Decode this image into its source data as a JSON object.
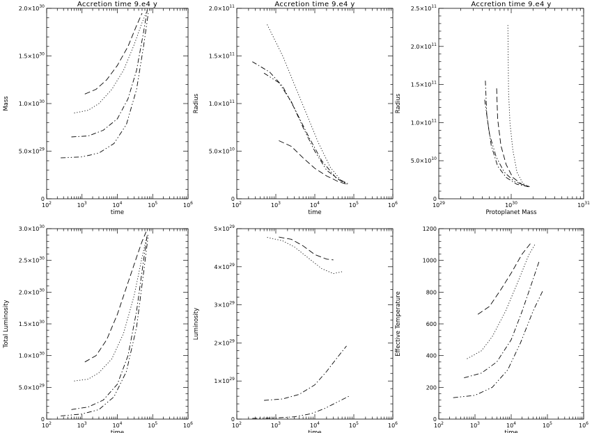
{
  "chart_data": [
    {
      "type": "line",
      "title": "Accretion time 9.e4 y",
      "xlabel": "time",
      "ylabel": "Mass",
      "xscale": "log",
      "xlim": [
        100,
        1000000
      ],
      "ylim": [
        0,
        2e+30
      ],
      "xticks": [
        {
          "v": 100,
          "b": "10",
          "e": "2"
        },
        {
          "v": 1000,
          "b": "10",
          "e": "3"
        },
        {
          "v": 10000,
          "b": "10",
          "e": "4"
        },
        {
          "v": 100000,
          "b": "10",
          "e": "5"
        },
        {
          "v": 1000000,
          "b": "10",
          "e": "6"
        }
      ],
      "yticks": [
        {
          "v": 0,
          "b": "0",
          "e": ""
        },
        {
          "v": 5e+29,
          "b": "5.0×10",
          "e": "29"
        },
        {
          "v": 1e+30,
          "b": "1.0×10",
          "e": "30"
        },
        {
          "v": 1.5e+30,
          "b": "1.5×10",
          "e": "30"
        },
        {
          "v": 2e+30,
          "b": "2.0×10",
          "e": "30"
        }
      ],
      "series": [
        {
          "style": "dashed",
          "x": [
            1200,
            2500,
            5000,
            10000,
            20000,
            35000,
            50000
          ],
          "y": [
            1.1e+30,
            1.15e+30,
            1.25e+30,
            1.4e+30,
            1.6e+30,
            1.82e+30,
            1.95e+30
          ]
        },
        {
          "style": "dotted",
          "x": [
            600,
            1500,
            3000,
            7000,
            15000,
            30000,
            50000,
            70000
          ],
          "y": [
            9e+29,
            9.3e+29,
            1e+30,
            1.15e+30,
            1.35e+30,
            1.62e+30,
            1.85e+30,
            1.98e+30
          ]
        },
        {
          "style": "dashdot",
          "x": [
            500,
            1500,
            4000,
            10000,
            20000,
            35000,
            55000,
            70000
          ],
          "y": [
            6.5e+29,
            6.6e+29,
            7.2e+29,
            8.4e+29,
            1.05e+30,
            1.35e+30,
            1.75e+30,
            1.98e+30
          ]
        },
        {
          "style": "dashdotdot",
          "x": [
            250,
            1000,
            3000,
            8000,
            18000,
            35000,
            55000,
            75000
          ],
          "y": [
            4.3e+29,
            4.4e+29,
            4.8e+29,
            5.8e+29,
            7.8e+29,
            1.15e+30,
            1.6e+30,
            1.95e+30
          ]
        }
      ]
    },
    {
      "type": "line",
      "title": "Accretion time 9.e4 y",
      "xlabel": "time",
      "ylabel": "Radius",
      "xscale": "log",
      "xlim": [
        100,
        1000000
      ],
      "ylim": [
        0,
        200000000000.0
      ],
      "xticks": [
        {
          "v": 100,
          "b": "10",
          "e": "2"
        },
        {
          "v": 1000,
          "b": "10",
          "e": "3"
        },
        {
          "v": 10000,
          "b": "10",
          "e": "4"
        },
        {
          "v": 100000,
          "b": "10",
          "e": "5"
        },
        {
          "v": 1000000,
          "b": "10",
          "e": "6"
        }
      ],
      "yticks": [
        {
          "v": 0,
          "b": "0",
          "e": ""
        },
        {
          "v": 50000000000.0,
          "b": "5.0×10",
          "e": "10"
        },
        {
          "v": 100000000000.0,
          "b": "1.0×10",
          "e": "11"
        },
        {
          "v": 150000000000.0,
          "b": "1.5×10",
          "e": "11"
        },
        {
          "v": 200000000000.0,
          "b": "2.0×10",
          "e": "11"
        }
      ],
      "series": [
        {
          "style": "dotted",
          "x": [
            600,
            1500,
            3000,
            6000,
            12000,
            25000,
            50000,
            70000
          ],
          "y": [
            183000000000.0,
            150000000000.0,
            120000000000.0,
            90000000000.0,
            60000000000.0,
            33000000000.0,
            18000000000.0,
            15000000000.0
          ]
        },
        {
          "style": "dashed",
          "x": [
            1200,
            2500,
            5000,
            10000,
            20000,
            40000,
            70000
          ],
          "y": [
            61000000000.0,
            55000000000.0,
            43000000000.0,
            32000000000.0,
            24000000000.0,
            18000000000.0,
            15000000000.0
          ]
        },
        {
          "style": "dashdot",
          "x": [
            250,
            700,
            1500,
            3000,
            7000,
            15000,
            35000,
            70000
          ],
          "y": [
            144000000000.0,
            133000000000.0,
            118000000000.0,
            95000000000.0,
            65000000000.0,
            40000000000.0,
            22000000000.0,
            16000000000.0
          ]
        },
        {
          "style": "dashdotdot",
          "x": [
            500,
            1200,
            2500,
            5000,
            10000,
            20000,
            45000,
            70000
          ],
          "y": [
            132000000000.0,
            122000000000.0,
            102000000000.0,
            75000000000.0,
            50000000000.0,
            30000000000.0,
            19000000000.0,
            16000000000.0
          ]
        }
      ]
    },
    {
      "type": "line",
      "title": "Accretion time 9.e4 y",
      "xlabel": "Protoplanet Mass",
      "ylabel": "Radius",
      "xscale": "log",
      "xlim": [
        1e+29,
        1e+31
      ],
      "ylim": [
        0,
        250000000000.0
      ],
      "xticks": [
        {
          "v": 1e+29,
          "b": "10",
          "e": "29"
        },
        {
          "v": 1e+30,
          "b": "10",
          "e": "30"
        },
        {
          "v": 1e+31,
          "b": "10",
          "e": "31"
        }
      ],
      "yticks": [
        {
          "v": 0,
          "b": "0",
          "e": ""
        },
        {
          "v": 50000000000.0,
          "b": "5.0×10",
          "e": "10"
        },
        {
          "v": 100000000000.0,
          "b": "1.0×10",
          "e": "11"
        },
        {
          "v": 150000000000.0,
          "b": "1.5×10",
          "e": "11"
        },
        {
          "v": 200000000000.0,
          "b": "2.0×10",
          "e": "11"
        },
        {
          "v": 250000000000.0,
          "b": "2.5×10",
          "e": "11"
        }
      ],
      "series": [
        {
          "style": "dotted",
          "x": [
            9e+29,
            9.2e+29,
            9.6e+29,
            1.05e+30,
            1.2e+30,
            1.45e+30,
            1.8e+30
          ],
          "y": [
            228000000000.0,
            140000000000.0,
            100000000000.0,
            65000000000.0,
            35000000000.0,
            20000000000.0,
            15000000000.0
          ]
        },
        {
          "style": "dashed",
          "x": [
            6.3e+29,
            6.5e+29,
            7.2e+29,
            8.5e+29,
            1.05e+30,
            1.4e+30,
            1.8e+30
          ],
          "y": [
            145000000000.0,
            105000000000.0,
            70000000000.0,
            45000000000.0,
            28000000000.0,
            19000000000.0,
            16000000000.0
          ]
        },
        {
          "style": "dashdot",
          "x": [
            4.4e+29,
            4.6e+29,
            5.3e+29,
            6.5e+29,
            8.5e+29,
            1.2e+30,
            1.7e+30
          ],
          "y": [
            155000000000.0,
            110000000000.0,
            70000000000.0,
            43000000000.0,
            28000000000.0,
            19000000000.0,
            16000000000.0
          ]
        },
        {
          "style": "dashdotdot",
          "x": [
            4.3e+29,
            5e+29,
            6.2e+29,
            8e+29,
            1.1e+30,
            1.5e+30,
            1.8e+30
          ],
          "y": [
            130000000000.0,
            85000000000.0,
            55000000000.0,
            35000000000.0,
            23000000000.0,
            18000000000.0,
            16000000000.0
          ]
        }
      ]
    },
    {
      "type": "line",
      "title": "",
      "xlabel": "time",
      "ylabel": "Total Luminosity",
      "xscale": "log",
      "xlim": [
        100,
        1000000
      ],
      "ylim": [
        0,
        3e+30
      ],
      "xticks": [
        {
          "v": 100,
          "b": "10",
          "e": "2"
        },
        {
          "v": 1000,
          "b": "10",
          "e": "3"
        },
        {
          "v": 10000,
          "b": "10",
          "e": "4"
        },
        {
          "v": 100000,
          "b": "10",
          "e": "5"
        },
        {
          "v": 1000000,
          "b": "10",
          "e": "6"
        }
      ],
      "yticks": [
        {
          "v": 0,
          "b": "0",
          "e": ""
        },
        {
          "v": 5e+29,
          "b": "5.0×10",
          "e": "29"
        },
        {
          "v": 1e+30,
          "b": "1.0×10",
          "e": "30"
        },
        {
          "v": 1.5e+30,
          "b": "1.5×10",
          "e": "30"
        },
        {
          "v": 2e+30,
          "b": "2.0×10",
          "e": "30"
        },
        {
          "v": 2.5e+30,
          "b": "2.5×10",
          "e": "30"
        },
        {
          "v": 3e+30,
          "b": "3.0×10",
          "e": "30"
        }
      ],
      "series": [
        {
          "style": "dashed",
          "x": [
            1200,
            2500,
            5000,
            10000,
            20000,
            35000,
            50000,
            65000
          ],
          "y": [
            9e+29,
            1e+30,
            1.25e+30,
            1.65e+30,
            2.15e+30,
            2.55e+30,
            2.8e+30,
            2.95e+30
          ]
        },
        {
          "style": "dotted",
          "x": [
            600,
            1500,
            3000,
            7000,
            15000,
            30000,
            50000,
            70000
          ],
          "y": [
            6e+29,
            6.3e+29,
            7.3e+29,
            9.5e+29,
            1.35e+30,
            1.95e+30,
            2.55e+30,
            2.9e+30
          ]
        },
        {
          "style": "dashdot",
          "x": [
            500,
            1500,
            4000,
            10000,
            20000,
            35000,
            55000,
            70000
          ],
          "y": [
            1.5e+29,
            1.9e+29,
            3e+29,
            5.5e+29,
            1e+30,
            1.7e+30,
            2.5e+30,
            2.9e+30
          ]
        },
        {
          "style": "dashdotdot",
          "x": [
            250,
            1000,
            3000,
            8000,
            18000,
            35000,
            55000,
            75000
          ],
          "y": [
            5e+28,
            8e+28,
            1.5e+29,
            3.5e+29,
            7.5e+29,
            1.45e+30,
            2.3e+30,
            2.9e+30
          ]
        }
      ]
    },
    {
      "type": "line",
      "title": "",
      "xlabel": "time",
      "ylabel": "Luminosity",
      "xscale": "log",
      "xlim": [
        100,
        1000000
      ],
      "ylim": [
        0,
        5e+29
      ],
      "xticks": [
        {
          "v": 100,
          "b": "10",
          "e": "2"
        },
        {
          "v": 1000,
          "b": "10",
          "e": "3"
        },
        {
          "v": 10000,
          "b": "10",
          "e": "4"
        },
        {
          "v": 100000,
          "b": "10",
          "e": "5"
        },
        {
          "v": 1000000,
          "b": "10",
          "e": "6"
        }
      ],
      "yticks": [
        {
          "v": 0,
          "b": "0",
          "e": ""
        },
        {
          "v": 1e+29,
          "b": "1×10",
          "e": "29"
        },
        {
          "v": 2e+29,
          "b": "2×10",
          "e": "29"
        },
        {
          "v": 3e+29,
          "b": "3×10",
          "e": "29"
        },
        {
          "v": 4e+29,
          "b": "4×10",
          "e": "29"
        },
        {
          "v": 5e+29,
          "b": "5×10",
          "e": "29"
        }
      ],
      "series": [
        {
          "style": "dashed",
          "x": [
            1200,
            2500,
            5000,
            10000,
            20000,
            30000
          ],
          "y": [
            4.78e+29,
            4.72e+29,
            4.55e+29,
            4.32e+29,
            4.2e+29,
            4.18e+29
          ]
        },
        {
          "style": "dotted",
          "x": [
            600,
            1500,
            3000,
            7000,
            15000,
            30000,
            55000
          ],
          "y": [
            4.77e+29,
            4.68e+29,
            4.52e+29,
            4.22e+29,
            3.95e+29,
            3.82e+29,
            3.88e+29
          ]
        },
        {
          "style": "dashdot",
          "x": [
            500,
            1500,
            4000,
            10000,
            20000,
            40000,
            65000
          ],
          "y": [
            4.9e+28,
            5.3e+28,
            6.5e+28,
            9e+28,
            1.25e+29,
            1.65e+29,
            1.92e+29
          ]
        },
        {
          "style": "dashdotdot",
          "x": [
            250,
            1000,
            3000,
            8000,
            18000,
            40000,
            75000
          ],
          "y": [
            2e+27,
            3e+27,
            6e+27,
            1.4e+28,
            2.8e+28,
            4.6e+28,
            6e+28
          ]
        }
      ]
    },
    {
      "type": "line",
      "title": "",
      "xlabel": "time",
      "ylabel": "Effective Temperature",
      "xscale": "log",
      "xlim": [
        100,
        1000000
      ],
      "ylim": [
        0,
        1200
      ],
      "xticks": [
        {
          "v": 100,
          "b": "10",
          "e": "2"
        },
        {
          "v": 1000,
          "b": "10",
          "e": "3"
        },
        {
          "v": 10000,
          "b": "10",
          "e": "4"
        },
        {
          "v": 100000,
          "b": "10",
          "e": "5"
        },
        {
          "v": 1000000,
          "b": "10",
          "e": "6"
        }
      ],
      "yticks": [
        {
          "v": 0,
          "b": "0",
          "e": ""
        },
        {
          "v": 200,
          "b": "200",
          "e": ""
        },
        {
          "v": 400,
          "b": "400",
          "e": ""
        },
        {
          "v": 600,
          "b": "600",
          "e": ""
        },
        {
          "v": 800,
          "b": "800",
          "e": ""
        },
        {
          "v": 1000,
          "b": "1000",
          "e": ""
        },
        {
          "v": 1200,
          "b": "1200",
          "e": ""
        }
      ],
      "series": [
        {
          "style": "dashed",
          "x": [
            1200,
            2500,
            5000,
            10000,
            20000,
            35000
          ],
          "y": [
            660,
            710,
            810,
            920,
            1040,
            1110
          ]
        },
        {
          "style": "dotted",
          "x": [
            600,
            1500,
            3000,
            7000,
            15000,
            30000,
            45000
          ],
          "y": [
            380,
            430,
            520,
            680,
            860,
            1030,
            1100
          ]
        },
        {
          "style": "dashdot",
          "x": [
            500,
            1500,
            4000,
            10000,
            20000,
            40000,
            60000
          ],
          "y": [
            260,
            290,
            360,
            500,
            680,
            880,
            1000
          ]
        },
        {
          "style": "dashdotdot",
          "x": [
            250,
            1000,
            3000,
            8000,
            18000,
            40000,
            75000
          ],
          "y": [
            135,
            150,
            200,
            310,
            480,
            680,
            810
          ]
        }
      ]
    }
  ]
}
